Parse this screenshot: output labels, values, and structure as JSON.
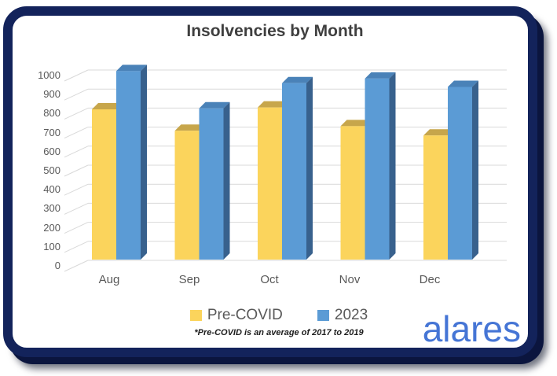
{
  "chart_data": {
    "type": "bar",
    "style": "3d-clustered-column",
    "title": "Insolvencies by Month",
    "categories": [
      "Aug",
      "Sep",
      "Oct",
      "Nov",
      "Dec"
    ],
    "series": [
      {
        "name": "Pre-COVID",
        "values": [
          805,
          690,
          815,
          715,
          665
        ]
      },
      {
        "name": "2023",
        "values": [
          1010,
          810,
          945,
          970,
          925
        ]
      }
    ],
    "ylim": [
      0,
      1000
    ],
    "ytick_step": 100,
    "grid": true,
    "legend_position": "bottom",
    "footnote": "*Pre-COVID is an average of 2017 to 2019"
  },
  "colors": {
    "series_pre_covid_front": "#FBD45C",
    "series_pre_covid_top": "#C7A64B",
    "series_2023_front": "#5B9BD5",
    "series_2023_top": "#4A82B8",
    "series_2023_side": "#38618D",
    "gridline": "#D9D9D9",
    "axis_text": "#595959",
    "title_text": "#3F3F3F",
    "card_border": "#13235B",
    "logo_blue": "#4575D5"
  },
  "logo": {
    "text": "alares"
  }
}
